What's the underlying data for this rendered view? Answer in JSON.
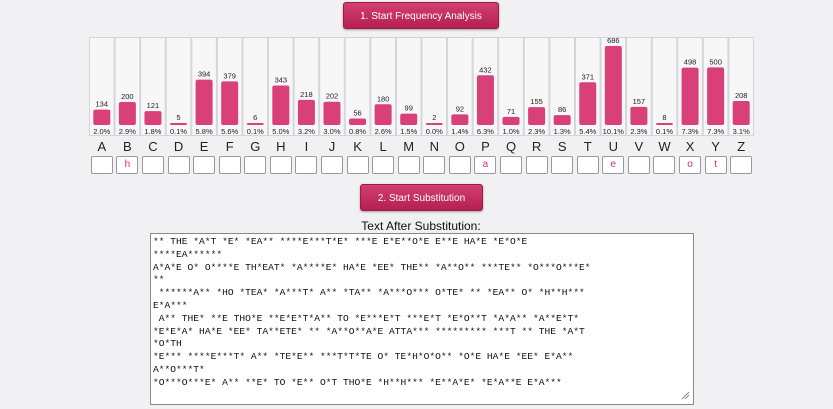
{
  "buttons": {
    "start_frequency": "1. Start Frequency Analysis",
    "start_substitution": "2. Start Substitution"
  },
  "colors": {
    "accent": "#c8305f",
    "bar": "#d9407a",
    "subst_text": "#d72a86"
  },
  "chart_data": {
    "type": "bar",
    "categories": [
      "A",
      "B",
      "C",
      "D",
      "E",
      "F",
      "G",
      "H",
      "I",
      "J",
      "K",
      "L",
      "M",
      "N",
      "O",
      "P",
      "Q",
      "R",
      "S",
      "T",
      "U",
      "V",
      "W",
      "X",
      "Y",
      "Z"
    ],
    "values": [
      134,
      200,
      121,
      5,
      394,
      379,
      6,
      343,
      218,
      202,
      56,
      180,
      99,
      2,
      92,
      432,
      71,
      155,
      86,
      371,
      686,
      157,
      8,
      498,
      500,
      208
    ],
    "percentages": [
      "2.0%",
      "2.9%",
      "1.8%",
      "0.1%",
      "5.8%",
      "5.6%",
      "0.1%",
      "5.0%",
      "3.2%",
      "3.0%",
      "0.8%",
      "2.6%",
      "1.5%",
      "0.0%",
      "1.4%",
      "6.3%",
      "1.0%",
      "2.3%",
      "1.3%",
      "5.4%",
      "10.1%",
      "2.3%",
      "0.1%",
      "7.3%",
      "7.3%",
      "3.1%"
    ],
    "ylim": [
      0,
      686
    ]
  },
  "substitutions": [
    "",
    "h",
    "",
    "",
    "",
    "",
    "",
    "",
    "",
    "",
    "",
    "",
    "",
    "",
    "",
    "a",
    "",
    "",
    "",
    "",
    "e",
    "",
    "",
    "o",
    "t",
    ""
  ],
  "output": {
    "label": "Text After Substitution:",
    "lines": [
      "** THE *A*T *E* *EA** ****E***T*E* ***E E*E**O*E E**E HA*E *E*O*E",
      "****EA******",
      "A*A*E O* O****E TH*EAT* *A****E* HA*E *EE* THE** *A**O** ***TE** *O***O***E*",
      "**",
      " ******A** *HO *TEA* *A***T* A** *TA** *A***O*** O*TE* ** *EA** O* *H**H***",
      "E*A***",
      " A** THE* **E THO*E **E*E*T*A** TO *E***E*T ***E*T *E*O**T *A*A** *A**E*T*",
      "*E*E*A* HA*E *EE* TA**ETE* ** *A**O**A*E ATTA*** ********* ***T ** THE *A*T",
      "*O*TH",
      "*E*** ****E***T* A** *TE*E** ***T*T*TE O* TE*H*O*O** *O*E HA*E *EE* E*A**",
      "A**O***T*",
      "*O***O***E* A** **E* TO *E** O*T THO*E *H**H*** *E**A*E* *E*A**E E*A***"
    ]
  }
}
